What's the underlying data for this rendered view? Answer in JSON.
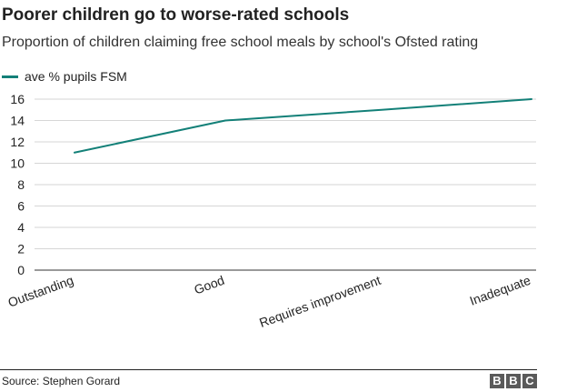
{
  "header": {
    "title": "Poorer children go to worse-rated schools",
    "subtitle": "Proportion of children claiming free school meals by school's Ofsted rating"
  },
  "legend": {
    "label": "ave % pupils FSM",
    "color": "#138078"
  },
  "chart_data": {
    "type": "line",
    "title": "Poorer children go to worse-rated schools",
    "subtitle": "Proportion of children claiming free school meals by school's Ofsted rating",
    "categories": [
      "Outstanding",
      "Good",
      "Requires improvement",
      "Inadequate"
    ],
    "series": [
      {
        "name": "ave % pupils FSM",
        "values": [
          11,
          14,
          15,
          16
        ],
        "color": "#138078"
      }
    ],
    "xlabel": "",
    "ylabel": "",
    "ylim": [
      0,
      16
    ],
    "yticks": [
      0,
      2,
      4,
      6,
      8,
      10,
      12,
      14,
      16
    ],
    "grid": true,
    "legend_position": "top-left"
  },
  "footer": {
    "source": "Source: Stephen Gorard",
    "logo_letters": [
      "B",
      "B",
      "C"
    ]
  }
}
